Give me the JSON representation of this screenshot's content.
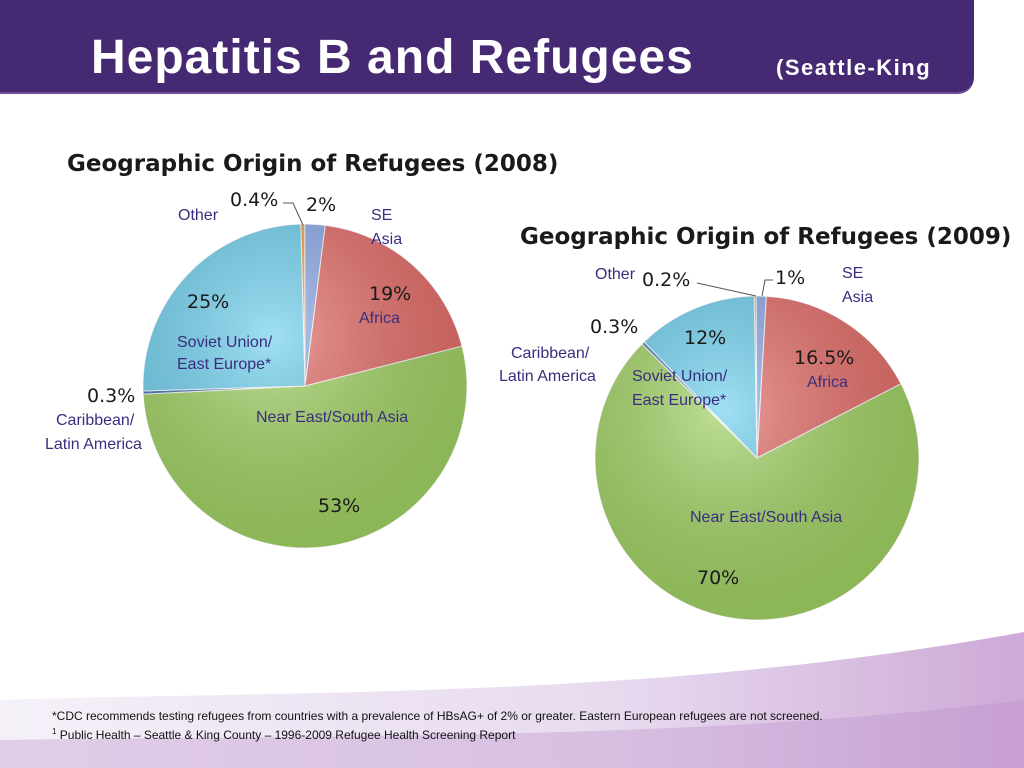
{
  "header": {
    "title": "Hepatitis B and Refugees",
    "subtitle": "(Seattle-King"
  },
  "colors": {
    "header_bg": "#452a73",
    "se_asia": "#8aa8e8",
    "africa": "#e46a66",
    "near_east": "#9fd160",
    "caribbean": "#3a6fb8",
    "soviet": "#6ccfee",
    "other": "#f0a040"
  },
  "chart_data": [
    {
      "type": "pie",
      "title": "Geographic Origin of Refugees (2008)",
      "slices": [
        {
          "pct_label": "0.4%",
          "label": "Other",
          "value": 0.4,
          "color": "#f0a040"
        },
        {
          "pct_label": "2%",
          "label": "SE Asia",
          "value": 2,
          "color": "#8aa8e8"
        },
        {
          "pct_label": "19%",
          "label": "Africa",
          "value": 19,
          "color": "#e46a66"
        },
        {
          "pct_label": "53%",
          "label": "Near East/South Asia",
          "value": 53,
          "color": "#9fd160"
        },
        {
          "pct_label": "0.3%",
          "label": "Caribbean/ Latin America",
          "value": 0.3,
          "color": "#3a6fb8"
        },
        {
          "pct_label": "25%",
          "label": "Soviet Union/ East Europe*",
          "value": 25,
          "color": "#6ccfee"
        }
      ]
    },
    {
      "type": "pie",
      "title": "Geographic Origin of Refugees (2009)",
      "slices": [
        {
          "pct_label": "0.2%",
          "label": "Other",
          "value": 0.2,
          "color": "#f0a040"
        },
        {
          "pct_label": "1%",
          "label": "SE Asia",
          "value": 1,
          "color": "#8aa8e8"
        },
        {
          "pct_label": "16.5%",
          "label": "Africa",
          "value": 16.5,
          "color": "#e46a66"
        },
        {
          "pct_label": "70%",
          "label": "Near East/South Asia",
          "value": 70,
          "color": "#9fd160"
        },
        {
          "pct_label": "0.3%",
          "label": "Caribbean/ Latin America",
          "value": 0.3,
          "color": "#3a6fb8"
        },
        {
          "pct_label": "12%",
          "label": "Soviet Union/ East Europe*",
          "value": 12,
          "color": "#6ccfee"
        }
      ]
    }
  ],
  "footnotes": {
    "line1": "*CDC recommends testing refugees from countries with a prevalence of HBsAG+ of 2% or greater. Eastern European refugees are not screened.",
    "line2_sup": "1",
    "line2": " Public Health – Seattle & King County – 1996-2009 Refugee Health Screening Report"
  }
}
